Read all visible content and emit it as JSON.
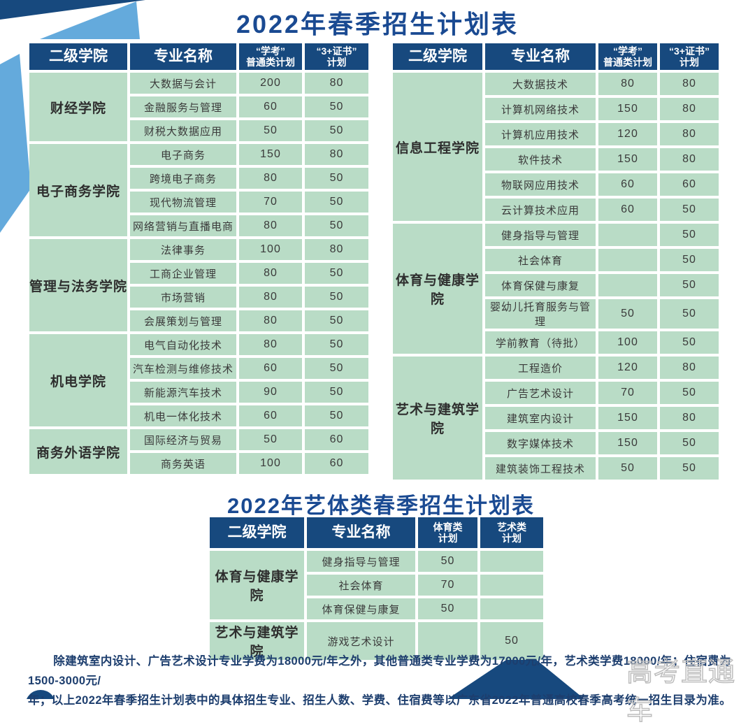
{
  "page": {
    "title": "2022年春季招生计划表",
    "subtitle": "2022年艺体类春季招生计划表",
    "footer_line1": "除建筑室内设计、广告艺术设计专业学费为18000元/年之外，其他普通类专业学费为17000元/年，艺术类学费18000/年；住宿费为1500-3000元/",
    "footer_line2": "年；以上2022年春季招生计划表中的具体招生专业、招生人数、学费、住宿费等以广东省2022年普通高校春季高考统一招生目录为准。",
    "watermark": "高考直通车"
  },
  "colors": {
    "navy": "#17497e",
    "cell_green": "#b9dcc6",
    "light_blue": "#64aadc",
    "title_blue": "#1a4a92",
    "footer_text": "#1d3e6e",
    "watermark_gray": "#bdbdbd"
  },
  "main_headers": [
    "二级学院",
    "专业名称",
    "“学考”\n普通类计划",
    "“3+证书”\n计划"
  ],
  "art_headers": [
    "二级学院",
    "专业名称",
    "体育类\n计划",
    "艺术类\n计划"
  ],
  "left_table": {
    "groups": [
      {
        "college": "财经学院",
        "rows": [
          {
            "major": "大数据与会计",
            "xuekao": "200",
            "cert": "80"
          },
          {
            "major": "金融服务与管理",
            "xuekao": "60",
            "cert": "50"
          },
          {
            "major": "财税大数据应用",
            "xuekao": "50",
            "cert": "50"
          }
        ]
      },
      {
        "college": "电子商务学院",
        "rows": [
          {
            "major": "电子商务",
            "xuekao": "150",
            "cert": "80"
          },
          {
            "major": "跨境电子商务",
            "xuekao": "80",
            "cert": "50"
          },
          {
            "major": "现代物流管理",
            "xuekao": "70",
            "cert": "50"
          },
          {
            "major": "网络营销与直播电商",
            "xuekao": "80",
            "cert": "50"
          }
        ]
      },
      {
        "college": "管理与法务学院",
        "rows": [
          {
            "major": "法律事务",
            "xuekao": "100",
            "cert": "80"
          },
          {
            "major": "工商企业管理",
            "xuekao": "80",
            "cert": "50"
          },
          {
            "major": "市场营销",
            "xuekao": "80",
            "cert": "50"
          },
          {
            "major": "会展策划与管理",
            "xuekao": "80",
            "cert": "50"
          }
        ]
      },
      {
        "college": "机电学院",
        "rows": [
          {
            "major": "电气自动化技术",
            "xuekao": "80",
            "cert": "50"
          },
          {
            "major": "汽车检测与维修技术",
            "xuekao": "60",
            "cert": "50"
          },
          {
            "major": "新能源汽车技术",
            "xuekao": "90",
            "cert": "50"
          },
          {
            "major": "机电一体化技术",
            "xuekao": "60",
            "cert": "50"
          }
        ]
      },
      {
        "college": "商务外语学院",
        "rows": [
          {
            "major": "国际经济与贸易",
            "xuekao": "50",
            "cert": "60"
          },
          {
            "major": "商务英语",
            "xuekao": "100",
            "cert": "60"
          }
        ]
      }
    ]
  },
  "right_table": {
    "groups": [
      {
        "college": "信息工程学院",
        "rows": [
          {
            "major": "大数据技术",
            "xuekao": "80",
            "cert": "80"
          },
          {
            "major": "计算机网络技术",
            "xuekao": "150",
            "cert": "80"
          },
          {
            "major": "计算机应用技术",
            "xuekao": "120",
            "cert": "80"
          },
          {
            "major": "软件技术",
            "xuekao": "150",
            "cert": "80"
          },
          {
            "major": "物联网应用技术",
            "xuekao": "60",
            "cert": "60"
          },
          {
            "major": "云计算技术应用",
            "xuekao": "60",
            "cert": "50"
          }
        ]
      },
      {
        "college": "体育与健康学院",
        "rows": [
          {
            "major": "健身指导与管理",
            "xuekao": "",
            "cert": "50"
          },
          {
            "major": "社会体育",
            "xuekao": "",
            "cert": "50"
          },
          {
            "major": "体育保健与康复",
            "xuekao": "",
            "cert": "50"
          },
          {
            "major": "婴幼儿托育服务与管理",
            "xuekao": "50",
            "cert": "50"
          },
          {
            "major": "学前教育（待批）",
            "xuekao": "100",
            "cert": "50"
          }
        ]
      },
      {
        "college": "艺术与建筑学院",
        "rows": [
          {
            "major": "工程造价",
            "xuekao": "120",
            "cert": "80"
          },
          {
            "major": "广告艺术设计",
            "xuekao": "70",
            "cert": "50"
          },
          {
            "major": "建筑室内设计",
            "xuekao": "150",
            "cert": "80"
          },
          {
            "major": "数字媒体技术",
            "xuekao": "150",
            "cert": "50"
          },
          {
            "major": "建筑装饰工程技术",
            "xuekao": "50",
            "cert": "50"
          }
        ]
      }
    ]
  },
  "art_table": {
    "groups": [
      {
        "college": "体育与健康学院",
        "rows": [
          {
            "major": "健身指导与管理",
            "xuekao": "50",
            "cert": ""
          },
          {
            "major": "社会体育",
            "xuekao": "70",
            "cert": ""
          },
          {
            "major": "体育保健与康复",
            "xuekao": "50",
            "cert": ""
          }
        ]
      },
      {
        "college": "艺术与建筑学院",
        "rows": [
          {
            "major": "游戏艺术设计",
            "xuekao": "",
            "cert": "50"
          }
        ]
      }
    ]
  }
}
